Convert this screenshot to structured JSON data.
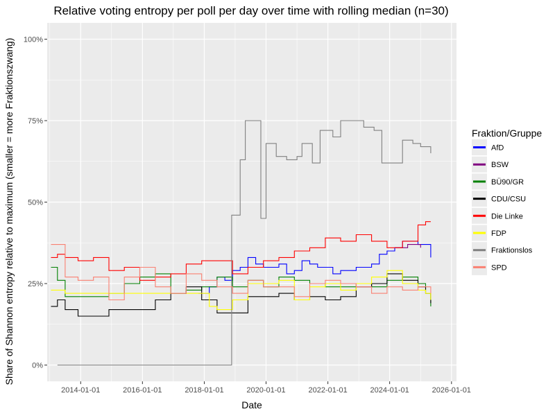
{
  "chart_data": {
    "type": "line",
    "title": "Relative voting entropy per poll per day over time with rolling median (n=30)",
    "xlabel": "Date",
    "ylabel": "Share of Shannon entropy relative to maximum (smaller = more Fraktionszwang)",
    "x_axis": {
      "type": "date",
      "range": [
        "2012-12-01",
        "2026-03-01"
      ],
      "ticks": [
        "2014-01-01",
        "2016-01-01",
        "2018-01-01",
        "2020-01-01",
        "2022-01-01",
        "2024-01-01",
        "2026-01-01"
      ]
    },
    "y_axis": {
      "range": [
        -5,
        105
      ],
      "ticks": [
        0,
        25,
        50,
        75,
        100
      ],
      "tick_labels": [
        "0%",
        "25%",
        "50%",
        "75%",
        "100%"
      ]
    },
    "grid": true,
    "panel_background": "#ebebeb",
    "legend": {
      "title": "Fraktion/Gruppe",
      "position": "right"
    },
    "series": [
      {
        "name": "AfD",
        "color": "#0000ff",
        "points": [
          [
            "2017-10-24",
            22
          ],
          [
            "2018-03-01",
            24
          ],
          [
            "2018-06-01",
            27
          ],
          [
            "2018-09-01",
            26
          ],
          [
            "2018-12-01",
            29
          ],
          [
            "2019-03-01",
            30
          ],
          [
            "2019-06-01",
            33
          ],
          [
            "2019-09-01",
            31
          ],
          [
            "2019-12-01",
            30
          ],
          [
            "2020-03-01",
            30
          ],
          [
            "2020-06-01",
            31
          ],
          [
            "2020-09-01",
            28
          ],
          [
            "2020-12-01",
            29
          ],
          [
            "2021-03-01",
            32
          ],
          [
            "2021-06-01",
            31
          ],
          [
            "2021-09-01",
            30
          ],
          [
            "2021-12-01",
            30
          ],
          [
            "2022-03-01",
            28
          ],
          [
            "2022-06-01",
            29
          ],
          [
            "2022-09-01",
            29
          ],
          [
            "2022-12-01",
            30
          ],
          [
            "2023-03-01",
            30
          ],
          [
            "2023-06-01",
            31
          ],
          [
            "2023-09-01",
            34
          ],
          [
            "2023-12-01",
            35
          ],
          [
            "2024-03-01",
            36
          ],
          [
            "2024-06-01",
            38
          ],
          [
            "2024-09-01",
            38
          ],
          [
            "2024-12-01",
            37
          ],
          [
            "2025-03-01",
            37
          ],
          [
            "2025-05-01",
            33
          ]
        ]
      },
      {
        "name": "BSW",
        "color": "#800080",
        "points": [
          [
            "2024-03-01",
            36
          ],
          [
            "2024-08-01",
            37
          ],
          [
            "2025-01-01",
            36
          ]
        ]
      },
      {
        "name": "BÜ90/GR",
        "color": "#008000",
        "points": [
          [
            "2013-01-15",
            30
          ],
          [
            "2013-04-01",
            26
          ],
          [
            "2013-07-01",
            21
          ],
          [
            "2013-12-01",
            21
          ],
          [
            "2014-06-01",
            21
          ],
          [
            "2014-12-01",
            22
          ],
          [
            "2015-06-01",
            25
          ],
          [
            "2015-12-01",
            27
          ],
          [
            "2016-06-01",
            28
          ],
          [
            "2016-12-01",
            22
          ],
          [
            "2017-06-01",
            23
          ],
          [
            "2017-12-01",
            24
          ],
          [
            "2018-06-01",
            27
          ],
          [
            "2018-12-01",
            24
          ],
          [
            "2019-06-01",
            26
          ],
          [
            "2019-12-01",
            24
          ],
          [
            "2020-06-01",
            27
          ],
          [
            "2020-12-01",
            26
          ],
          [
            "2021-06-01",
            25
          ],
          [
            "2021-12-01",
            24
          ],
          [
            "2022-06-01",
            24
          ],
          [
            "2022-12-01",
            25
          ],
          [
            "2023-06-01",
            24
          ],
          [
            "2023-12-01",
            26
          ],
          [
            "2024-06-01",
            27
          ],
          [
            "2024-12-01",
            25
          ],
          [
            "2025-03-01",
            22
          ],
          [
            "2025-05-01",
            18
          ]
        ]
      },
      {
        "name": "CDU/CSU",
        "color": "#000000",
        "points": [
          [
            "2013-01-15",
            18
          ],
          [
            "2013-04-01",
            20
          ],
          [
            "2013-07-01",
            17
          ],
          [
            "2013-12-01",
            15
          ],
          [
            "2014-06-01",
            15
          ],
          [
            "2014-12-01",
            17
          ],
          [
            "2015-06-01",
            17
          ],
          [
            "2015-12-01",
            17
          ],
          [
            "2016-06-01",
            20
          ],
          [
            "2016-12-01",
            22
          ],
          [
            "2017-06-01",
            24
          ],
          [
            "2017-12-01",
            20
          ],
          [
            "2018-06-01",
            16
          ],
          [
            "2018-12-01",
            16
          ],
          [
            "2019-06-01",
            21
          ],
          [
            "2019-12-01",
            21
          ],
          [
            "2020-06-01",
            22
          ],
          [
            "2020-12-01",
            20
          ],
          [
            "2021-06-01",
            21
          ],
          [
            "2021-12-01",
            20
          ],
          [
            "2022-06-01",
            21
          ],
          [
            "2022-12-01",
            24
          ],
          [
            "2023-06-01",
            25
          ],
          [
            "2023-12-01",
            28
          ],
          [
            "2024-06-01",
            26
          ],
          [
            "2024-12-01",
            24
          ],
          [
            "2025-03-01",
            22
          ],
          [
            "2025-05-01",
            19
          ]
        ]
      },
      {
        "name": "Die Linke",
        "color": "#ff0000",
        "points": [
          [
            "2013-01-15",
            33
          ],
          [
            "2013-04-01",
            34
          ],
          [
            "2013-07-01",
            33
          ],
          [
            "2013-12-01",
            32
          ],
          [
            "2014-06-01",
            33
          ],
          [
            "2014-12-01",
            29
          ],
          [
            "2015-06-01",
            30
          ],
          [
            "2015-12-01",
            26
          ],
          [
            "2016-06-01",
            27
          ],
          [
            "2016-12-01",
            28
          ],
          [
            "2017-06-01",
            31
          ],
          [
            "2017-12-01",
            32
          ],
          [
            "2018-06-01",
            32
          ],
          [
            "2018-12-01",
            28
          ],
          [
            "2019-06-01",
            30
          ],
          [
            "2019-12-01",
            32
          ],
          [
            "2020-06-01",
            33
          ],
          [
            "2020-12-01",
            35
          ],
          [
            "2021-06-01",
            36
          ],
          [
            "2021-12-01",
            39
          ],
          [
            "2022-06-01",
            38
          ],
          [
            "2022-12-01",
            40
          ],
          [
            "2023-06-01",
            38
          ],
          [
            "2023-12-01",
            36
          ],
          [
            "2024-06-01",
            38
          ],
          [
            "2024-12-01",
            43
          ],
          [
            "2025-03-01",
            44
          ],
          [
            "2025-05-01",
            44
          ]
        ]
      },
      {
        "name": "FDP",
        "color": "#ffff00",
        "points": [
          [
            "2013-01-15",
            23
          ],
          [
            "2013-04-01",
            23
          ],
          [
            "2013-07-01",
            22
          ],
          [
            "2014-06-01",
            22
          ],
          [
            "2015-06-01",
            22
          ],
          [
            "2016-06-01",
            22
          ],
          [
            "2017-06-01",
            22
          ],
          [
            "2017-10-24",
            22
          ],
          [
            "2018-03-01",
            18
          ],
          [
            "2018-06-01",
            17
          ],
          [
            "2018-12-01",
            20
          ],
          [
            "2019-06-01",
            25
          ],
          [
            "2019-12-01",
            25
          ],
          [
            "2020-06-01",
            26
          ],
          [
            "2020-12-01",
            20
          ],
          [
            "2021-06-01",
            24
          ],
          [
            "2021-12-01",
            25
          ],
          [
            "2022-06-01",
            23
          ],
          [
            "2022-12-01",
            25
          ],
          [
            "2023-06-01",
            27
          ],
          [
            "2023-12-01",
            29
          ],
          [
            "2024-06-01",
            25
          ],
          [
            "2024-12-01",
            23
          ],
          [
            "2025-03-01",
            22
          ],
          [
            "2025-05-01",
            20
          ]
        ]
      },
      {
        "name": "Fraktionslos",
        "color": "#808080",
        "points": [
          [
            "2013-04-01",
            0
          ],
          [
            "2014-06-01",
            0
          ],
          [
            "2016-06-01",
            0
          ],
          [
            "2018-06-01",
            0
          ],
          [
            "2018-11-15",
            0
          ],
          [
            "2018-11-20",
            46
          ],
          [
            "2019-02-01",
            46
          ],
          [
            "2019-03-01",
            63
          ],
          [
            "2019-05-01",
            75
          ],
          [
            "2019-09-01",
            75
          ],
          [
            "2019-11-01",
            45
          ],
          [
            "2020-01-01",
            68
          ],
          [
            "2020-05-01",
            64
          ],
          [
            "2020-09-01",
            63
          ],
          [
            "2021-01-01",
            64
          ],
          [
            "2021-03-01",
            68
          ],
          [
            "2021-07-01",
            62
          ],
          [
            "2021-10-01",
            72
          ],
          [
            "2022-03-01",
            70
          ],
          [
            "2022-06-01",
            75
          ],
          [
            "2022-10-01",
            75
          ],
          [
            "2023-03-01",
            73
          ],
          [
            "2023-07-01",
            72
          ],
          [
            "2023-10-01",
            62
          ],
          [
            "2024-03-01",
            62
          ],
          [
            "2024-06-01",
            69
          ],
          [
            "2024-10-01",
            68
          ],
          [
            "2025-01-01",
            67
          ],
          [
            "2025-05-01",
            65
          ]
        ]
      },
      {
        "name": "SPD",
        "color": "#fa8072",
        "points": [
          [
            "2013-01-15",
            37
          ],
          [
            "2013-04-01",
            37
          ],
          [
            "2013-07-01",
            27
          ],
          [
            "2013-12-01",
            26
          ],
          [
            "2014-06-01",
            27
          ],
          [
            "2014-12-01",
            20
          ],
          [
            "2015-06-01",
            27
          ],
          [
            "2015-12-01",
            30
          ],
          [
            "2016-06-01",
            24
          ],
          [
            "2016-12-01",
            22
          ],
          [
            "2017-06-01",
            28
          ],
          [
            "2017-12-01",
            26
          ],
          [
            "2018-06-01",
            24
          ],
          [
            "2018-12-01",
            22
          ],
          [
            "2019-06-01",
            26
          ],
          [
            "2019-12-01",
            24
          ],
          [
            "2020-06-01",
            24
          ],
          [
            "2020-12-01",
            21
          ],
          [
            "2021-06-01",
            25
          ],
          [
            "2021-12-01",
            26
          ],
          [
            "2022-06-01",
            25
          ],
          [
            "2022-12-01",
            24
          ],
          [
            "2023-06-01",
            22
          ],
          [
            "2023-12-01",
            24
          ],
          [
            "2024-06-01",
            23
          ],
          [
            "2024-12-01",
            24
          ],
          [
            "2025-03-01",
            24
          ],
          [
            "2025-05-01",
            22
          ]
        ]
      }
    ]
  }
}
